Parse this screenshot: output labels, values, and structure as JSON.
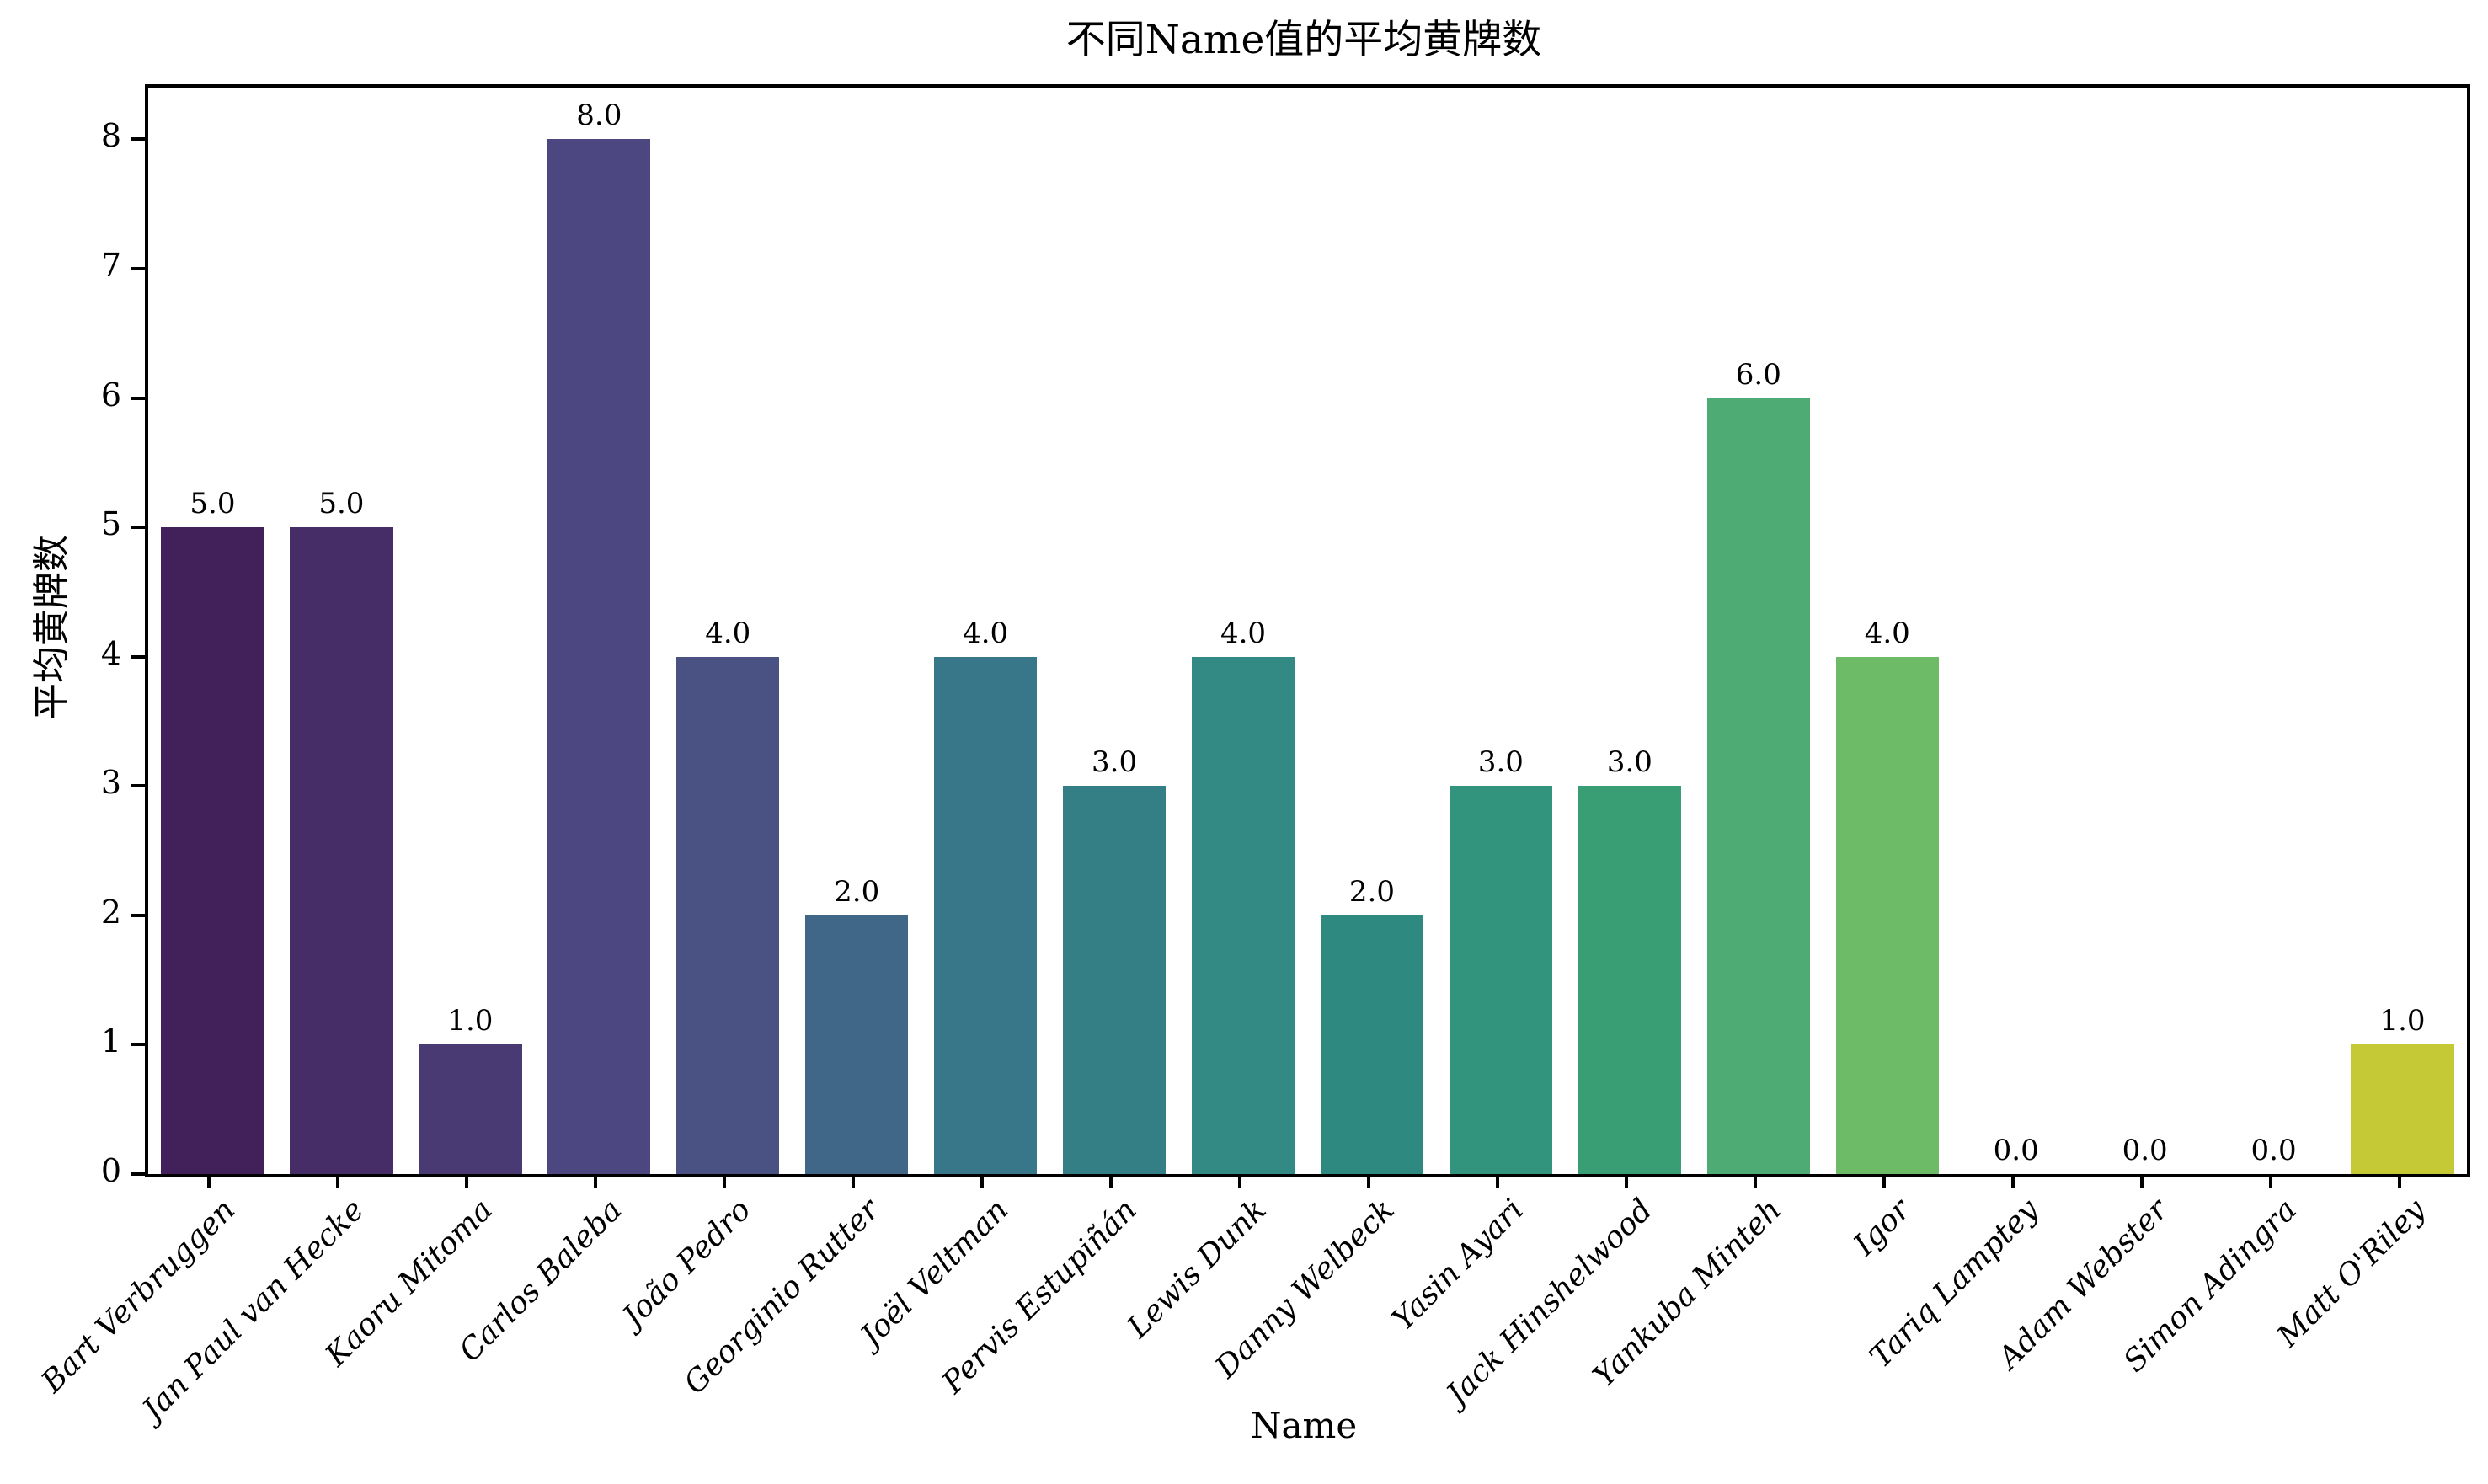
{
  "chart_data": {
    "type": "bar",
    "title": "不同Name值的平均黄牌数",
    "xlabel": "Name",
    "ylabel": "平均黄牌数",
    "categories": [
      "Bart Verbruggen",
      "Jan Paul van Hecke",
      "Kaoru Mitoma",
      "Carlos Baleba",
      "João Pedro",
      "Georginio Rutter",
      "Joël Veltman",
      "Pervis Estupiñán",
      "Lewis Dunk",
      "Danny Welbeck",
      "Yasin Ayari",
      "Jack Hinshelwood",
      "Yankuba Minteh",
      "Igor",
      "Tariq Lamptey",
      "Adam Webster",
      "Simon Adingra",
      "Matt O'Riley"
    ],
    "values": [
      5.0,
      5.0,
      1.0,
      8.0,
      4.0,
      2.0,
      4.0,
      3.0,
      4.0,
      2.0,
      3.0,
      3.0,
      6.0,
      4.0,
      0.0,
      0.0,
      0.0,
      1.0
    ],
    "bar_labels": [
      "5.0",
      "5.0",
      "1.0",
      "8.0",
      "4.0",
      "2.0",
      "4.0",
      "3.0",
      "4.0",
      "2.0",
      "3.0",
      "3.0",
      "6.0",
      "4.0",
      "0.0",
      "0.0",
      "0.0",
      "1.0"
    ],
    "bar_colors": [
      "#42215b",
      "#472d67",
      "#4a3a74",
      "#4c4780",
      "#4a5283",
      "#406688",
      "#377789",
      "#347f86",
      "#338983",
      "#2e8a80",
      "#32947c",
      "#3a9e75",
      "#4dab73",
      "#6dba67",
      "#8ec765",
      "#b3d45f",
      "#ccd74d",
      "#c5c935"
    ],
    "yticks": [
      "0",
      "1",
      "2",
      "3",
      "4",
      "5",
      "6",
      "7",
      "8"
    ],
    "ylim": [
      0,
      8.4
    ],
    "grid": false,
    "legend": null,
    "palette": "viridis"
  },
  "colors": {
    "background": "#ffffff",
    "axis": "#000000",
    "text": "#000000"
  }
}
